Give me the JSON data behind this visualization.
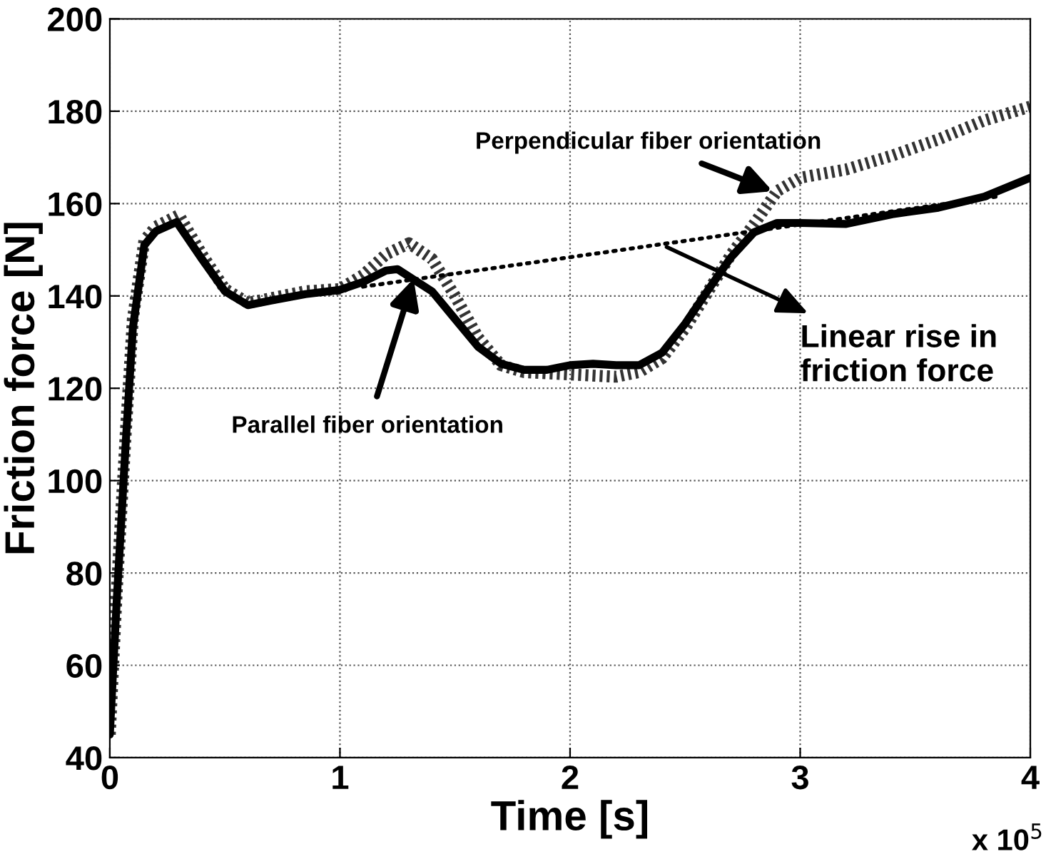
{
  "chart_data": {
    "type": "line",
    "xlabel": "Time [s]",
    "ylabel": "Friction force [N]",
    "xlim": [
      0,
      4
    ],
    "ylim": [
      40,
      200
    ],
    "xticks": [
      0,
      1,
      2,
      3,
      4
    ],
    "yticks": [
      40,
      60,
      80,
      100,
      120,
      140,
      160,
      180,
      200
    ],
    "grid": true,
    "series": [
      {
        "color": "#000000",
        "line_style": "solid",
        "x": [
          0,
          0.03,
          0.07,
          0.1,
          0.15,
          0.2,
          0.29,
          0.4,
          0.5,
          0.6,
          0.7,
          0.85,
          1.0,
          1.1,
          1.2,
          1.25,
          1.4,
          1.5,
          1.6,
          1.7,
          1.8,
          1.9,
          2.0,
          2.1,
          2.2,
          2.3,
          2.4,
          2.5,
          2.6,
          2.7,
          2.8,
          2.9,
          3.0,
          3.2,
          3.4,
          3.6,
          3.8,
          4.0
        ],
        "values": [
          45,
          74,
          109,
          133,
          151,
          154,
          156,
          148,
          141,
          138,
          139,
          140.4,
          141.3,
          143,
          145.5,
          145.8,
          141,
          135,
          129,
          125.3,
          124,
          124,
          125,
          125.3,
          125,
          125,
          127.7,
          134,
          141.3,
          148.4,
          153.8,
          155.8,
          155.8,
          155.6,
          157.7,
          159.1,
          161.5,
          165.6
        ]
      },
      {
        "color": "#333333",
        "line_style": "dotted",
        "x": [
          0,
          0.03,
          0.07,
          0.1,
          0.15,
          0.2,
          0.3,
          0.4,
          0.5,
          0.6,
          0.7,
          0.85,
          1.0,
          1.1,
          1.2,
          1.3,
          1.4,
          1.5,
          1.6,
          1.7,
          1.8,
          2.0,
          2.2,
          2.3,
          2.4,
          2.5,
          2.6,
          2.7,
          2.8,
          2.9,
          3.0,
          3.2,
          3.4,
          3.6,
          3.8,
          4.0
        ],
        "values": [
          45,
          76,
          111,
          135,
          152,
          155,
          157.5,
          149,
          141.5,
          138.5,
          139.5,
          141,
          141.5,
          144.5,
          149,
          151.4,
          148,
          140,
          131,
          125,
          123.5,
          123,
          122.5,
          123.5,
          126.5,
          133,
          141,
          149,
          155.6,
          162.7,
          165.6,
          167.4,
          170.4,
          173.9,
          178,
          181
        ]
      },
      {
        "color": "#000000",
        "line_style": "dotted",
        "x": [
          1.1,
          3.85
        ],
        "values": [
          142,
          161.5
        ]
      }
    ],
    "annotations": [
      {
        "text": "Perpendicular fiber orientation",
        "x": 2.88,
        "y": 162.7
      },
      {
        "text": "Parallel fiber orientation",
        "x": 1.32,
        "y": 143.7
      },
      {
        "text": "Linear rise in\nfriction force",
        "x": 2.42,
        "y": 150.6
      },
      "x 10$^{5}$"
    ]
  }
}
